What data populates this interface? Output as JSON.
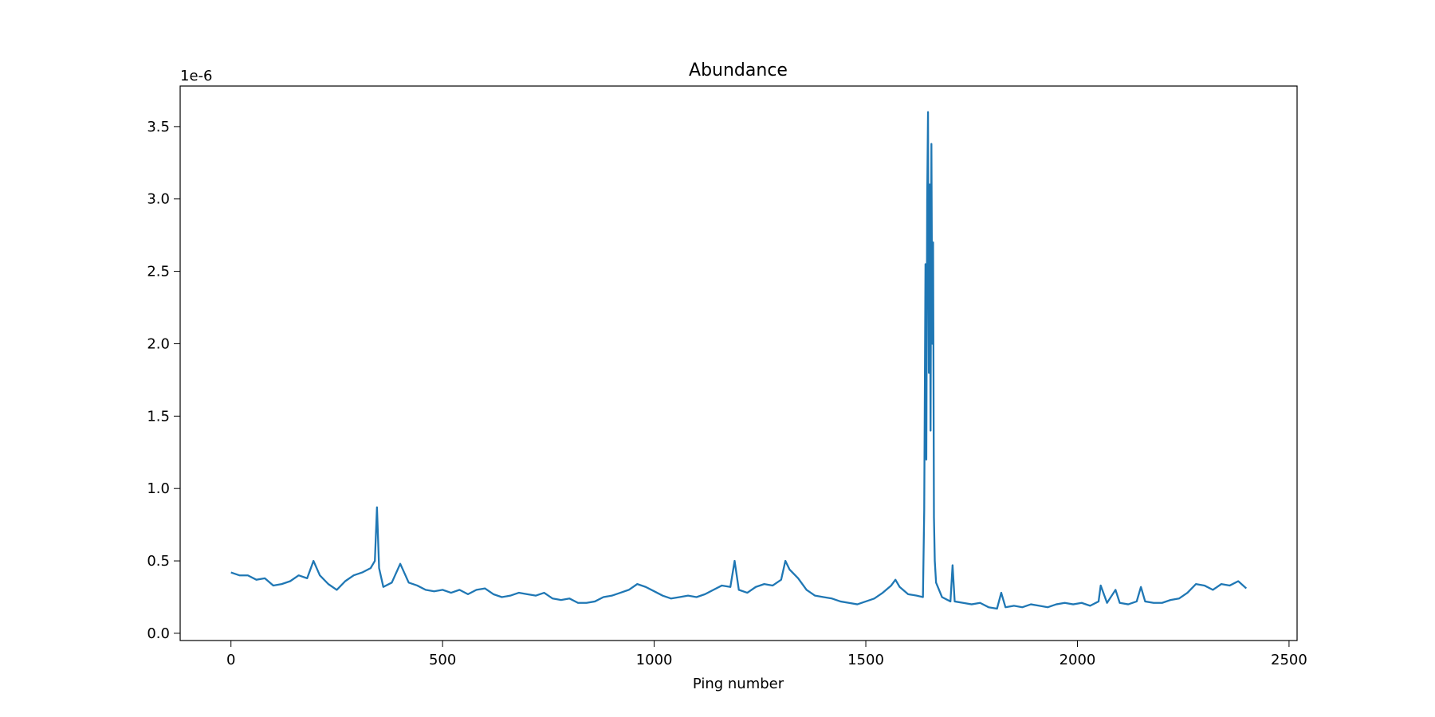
{
  "chart_data": {
    "type": "line",
    "title": "Abundance",
    "xlabel": "Ping number",
    "offset_label": "1e-6",
    "color": "#1f77b4",
    "x": [
      0,
      20,
      40,
      60,
      80,
      100,
      120,
      140,
      160,
      180,
      195,
      210,
      230,
      250,
      270,
      290,
      310,
      330,
      340,
      345,
      350,
      360,
      380,
      400,
      420,
      440,
      460,
      480,
      500,
      520,
      540,
      560,
      580,
      600,
      620,
      640,
      660,
      680,
      700,
      720,
      740,
      760,
      780,
      800,
      820,
      840,
      860,
      880,
      900,
      920,
      940,
      960,
      980,
      1000,
      1020,
      1040,
      1060,
      1080,
      1100,
      1120,
      1140,
      1160,
      1180,
      1190,
      1200,
      1220,
      1240,
      1260,
      1280,
      1300,
      1310,
      1320,
      1340,
      1360,
      1380,
      1400,
      1420,
      1440,
      1460,
      1480,
      1500,
      1520,
      1540,
      1560,
      1570,
      1580,
      1600,
      1620,
      1635,
      1638,
      1641,
      1643,
      1645,
      1647,
      1649,
      1651,
      1653,
      1655,
      1657,
      1659,
      1661,
      1663,
      1666,
      1680,
      1700,
      1705,
      1710,
      1730,
      1750,
      1770,
      1790,
      1810,
      1820,
      1830,
      1850,
      1870,
      1890,
      1910,
      1930,
      1950,
      1970,
      1990,
      2010,
      2030,
      2050,
      2055,
      2070,
      2090,
      2100,
      2120,
      2140,
      2150,
      2160,
      2180,
      2200,
      2220,
      2240,
      2260,
      2280,
      2300,
      2320,
      2340,
      2360,
      2380,
      2399
    ],
    "values": [
      0.42,
      0.4,
      0.4,
      0.37,
      0.38,
      0.33,
      0.34,
      0.36,
      0.4,
      0.38,
      0.5,
      0.4,
      0.34,
      0.3,
      0.36,
      0.4,
      0.42,
      0.45,
      0.5,
      0.87,
      0.45,
      0.32,
      0.35,
      0.48,
      0.35,
      0.33,
      0.3,
      0.29,
      0.3,
      0.28,
      0.3,
      0.27,
      0.3,
      0.31,
      0.27,
      0.25,
      0.26,
      0.28,
      0.27,
      0.26,
      0.28,
      0.24,
      0.23,
      0.24,
      0.21,
      0.21,
      0.22,
      0.25,
      0.26,
      0.28,
      0.3,
      0.34,
      0.32,
      0.29,
      0.26,
      0.24,
      0.25,
      0.26,
      0.25,
      0.27,
      0.3,
      0.33,
      0.32,
      0.5,
      0.3,
      0.28,
      0.32,
      0.34,
      0.33,
      0.37,
      0.5,
      0.44,
      0.38,
      0.3,
      0.26,
      0.25,
      0.24,
      0.22,
      0.21,
      0.2,
      0.22,
      0.24,
      0.28,
      0.33,
      0.37,
      0.32,
      0.27,
      0.26,
      0.25,
      0.85,
      2.55,
      1.2,
      3.0,
      3.6,
      1.8,
      3.1,
      1.4,
      3.38,
      2.0,
      2.7,
      0.8,
      0.5,
      0.35,
      0.25,
      0.22,
      0.47,
      0.22,
      0.21,
      0.2,
      0.21,
      0.18,
      0.17,
      0.28,
      0.18,
      0.19,
      0.18,
      0.2,
      0.19,
      0.18,
      0.2,
      0.21,
      0.2,
      0.21,
      0.19,
      0.22,
      0.33,
      0.21,
      0.3,
      0.21,
      0.2,
      0.22,
      0.32,
      0.22,
      0.21,
      0.21,
      0.23,
      0.24,
      0.28,
      0.34,
      0.33,
      0.3,
      0.34,
      0.33,
      0.36,
      0.31
    ],
    "xlim": [
      -120,
      2519
    ],
    "ylim": [
      -0.05,
      3.78
    ],
    "xticks": [
      0,
      500,
      1000,
      1500,
      2000,
      2500
    ],
    "yticks": [
      {
        "value": 0,
        "label": "0.0"
      },
      0.5,
      {
        "value": 1,
        "label": "1.0"
      },
      1.5,
      {
        "value": 2,
        "label": "2.0"
      },
      2.5,
      {
        "value": 3,
        "label": "3.0"
      },
      3.5
    ]
  }
}
